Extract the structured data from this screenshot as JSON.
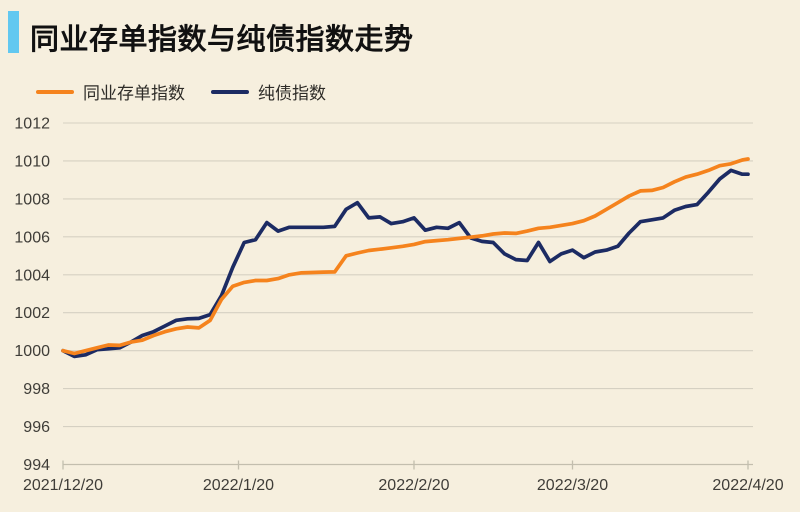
{
  "title": "同业存单指数与纯债指数走势",
  "colors": {
    "background": "#f6efde",
    "accent_bar": "#62c8f0",
    "gridline": "#d5d0c2",
    "axis_line": "#c3beae",
    "axis_text": "#3f3d38",
    "title_text": "#111111",
    "legend_text": "#2e2c28",
    "cd_index_orange": "#f5831d",
    "bond_index_navy": "#1c2b63"
  },
  "chart_data": {
    "type": "line",
    "title": "同业存单指数与纯债指数走势",
    "xlabel": "",
    "ylabel": "",
    "ylim": [
      994,
      1012
    ],
    "y_ticks": [
      1012,
      1010,
      1008,
      1006,
      1004,
      1002,
      1000,
      998,
      996,
      994
    ],
    "x_range_days": [
      0,
      121
    ],
    "x_ticks": [
      {
        "day": 0,
        "label": "2021/12/20"
      },
      {
        "day": 31,
        "label": "2022/1/20"
      },
      {
        "day": 62,
        "label": "2022/2/20"
      },
      {
        "day": 90,
        "label": "2022/3/20"
      },
      {
        "day": 121,
        "label": "2022/4/20"
      }
    ],
    "grid": true,
    "legend_position": "top-left",
    "series": [
      {
        "key": "cd-index-line",
        "name": "同业存单指数",
        "color": "#f5831d",
        "points": [
          [
            0,
            1000.0
          ],
          [
            2,
            999.85
          ],
          [
            4,
            1000.0
          ],
          [
            6,
            1000.15
          ],
          [
            8,
            1000.3
          ],
          [
            10,
            1000.28
          ],
          [
            12,
            1000.45
          ],
          [
            14,
            1000.55
          ],
          [
            16,
            1000.8
          ],
          [
            18,
            1001.0
          ],
          [
            20,
            1001.15
          ],
          [
            22,
            1001.25
          ],
          [
            24,
            1001.2
          ],
          [
            26,
            1001.6
          ],
          [
            28,
            1002.7
          ],
          [
            30,
            1003.4
          ],
          [
            32,
            1003.6
          ],
          [
            34,
            1003.7
          ],
          [
            36,
            1003.7
          ],
          [
            38,
            1003.8
          ],
          [
            40,
            1004.0
          ],
          [
            42,
            1004.1
          ],
          [
            44,
            1004.12
          ],
          [
            46,
            1004.14
          ],
          [
            48,
            1004.15
          ],
          [
            50,
            1005.0
          ],
          [
            52,
            1005.15
          ],
          [
            54,
            1005.28
          ],
          [
            56,
            1005.35
          ],
          [
            58,
            1005.42
          ],
          [
            60,
            1005.5
          ],
          [
            62,
            1005.6
          ],
          [
            64,
            1005.75
          ],
          [
            66,
            1005.8
          ],
          [
            68,
            1005.85
          ],
          [
            70,
            1005.92
          ],
          [
            72,
            1005.98
          ],
          [
            74,
            1006.05
          ],
          [
            76,
            1006.15
          ],
          [
            78,
            1006.2
          ],
          [
            80,
            1006.18
          ],
          [
            82,
            1006.3
          ],
          [
            84,
            1006.45
          ],
          [
            86,
            1006.5
          ],
          [
            88,
            1006.6
          ],
          [
            90,
            1006.7
          ],
          [
            92,
            1006.85
          ],
          [
            94,
            1007.1
          ],
          [
            96,
            1007.45
          ],
          [
            98,
            1007.8
          ],
          [
            100,
            1008.15
          ],
          [
            102,
            1008.42
          ],
          [
            104,
            1008.45
          ],
          [
            106,
            1008.6
          ],
          [
            108,
            1008.9
          ],
          [
            110,
            1009.15
          ],
          [
            112,
            1009.3
          ],
          [
            114,
            1009.5
          ],
          [
            116,
            1009.75
          ],
          [
            118,
            1009.85
          ],
          [
            120,
            1010.05
          ],
          [
            121,
            1010.1
          ]
        ]
      },
      {
        "key": "bond-index-line",
        "name": "纯债指数",
        "color": "#1c2b63",
        "points": [
          [
            0,
            1000.0
          ],
          [
            2,
            999.7
          ],
          [
            4,
            999.78
          ],
          [
            6,
            1000.05
          ],
          [
            8,
            1000.1
          ],
          [
            10,
            1000.15
          ],
          [
            12,
            1000.45
          ],
          [
            14,
            1000.8
          ],
          [
            16,
            1001.0
          ],
          [
            18,
            1001.3
          ],
          [
            20,
            1001.6
          ],
          [
            22,
            1001.68
          ],
          [
            24,
            1001.7
          ],
          [
            26,
            1001.9
          ],
          [
            28,
            1002.9
          ],
          [
            30,
            1004.4
          ],
          [
            32,
            1005.7
          ],
          [
            34,
            1005.85
          ],
          [
            36,
            1006.75
          ],
          [
            38,
            1006.3
          ],
          [
            40,
            1006.5
          ],
          [
            42,
            1006.5
          ],
          [
            44,
            1006.5
          ],
          [
            46,
            1006.5
          ],
          [
            48,
            1006.55
          ],
          [
            50,
            1007.45
          ],
          [
            52,
            1007.8
          ],
          [
            54,
            1007.0
          ],
          [
            56,
            1007.05
          ],
          [
            58,
            1006.7
          ],
          [
            60,
            1006.8
          ],
          [
            62,
            1007.0
          ],
          [
            64,
            1006.35
          ],
          [
            66,
            1006.5
          ],
          [
            68,
            1006.45
          ],
          [
            70,
            1006.75
          ],
          [
            72,
            1005.95
          ],
          [
            74,
            1005.76
          ],
          [
            76,
            1005.7
          ],
          [
            78,
            1005.1
          ],
          [
            80,
            1004.8
          ],
          [
            82,
            1004.75
          ],
          [
            84,
            1005.7
          ],
          [
            86,
            1004.7
          ],
          [
            88,
            1005.1
          ],
          [
            90,
            1005.3
          ],
          [
            92,
            1004.9
          ],
          [
            94,
            1005.2
          ],
          [
            96,
            1005.3
          ],
          [
            98,
            1005.5
          ],
          [
            100,
            1006.2
          ],
          [
            102,
            1006.8
          ],
          [
            104,
            1006.9
          ],
          [
            106,
            1007.0
          ],
          [
            108,
            1007.4
          ],
          [
            110,
            1007.6
          ],
          [
            112,
            1007.7
          ],
          [
            114,
            1008.35
          ],
          [
            116,
            1009.05
          ],
          [
            118,
            1009.5
          ],
          [
            120,
            1009.3
          ],
          [
            121,
            1009.3
          ]
        ]
      }
    ]
  }
}
